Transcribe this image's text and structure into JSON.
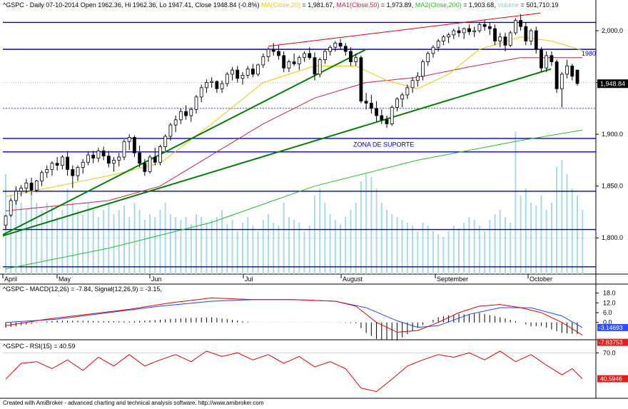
{
  "title": "^GSPC - Daily 07-10-2014 Open 1962.36, Hi 1962.36, Lo 1947.41, Close 1948.84 (-0.8%)",
  "legend": {
    "ma20": "MA(Close,20)",
    "ma20_value": "1,981.67",
    "ma50": "MA1(Close,50)",
    "ma50_value": "1,973.89",
    "ma200": "MA2(Close,200)",
    "ma200_value": "1,903.68",
    "volume": "Volume",
    "volume_value": "501,710.19"
  },
  "colors": {
    "candle": "#000000",
    "ma20": "#e8c800",
    "ma50": "#d02040",
    "ma200": "#20c020",
    "volume": "#a8d8f0",
    "hline": "#0000c8",
    "trend_support": "#008000",
    "trend_resistance": "#e00000",
    "macd": "#e00000",
    "signal": "#2040ff",
    "rsi": "#e00000",
    "last_price_bg": "#000000",
    "macd_badge": "#3050ff",
    "signal_badge": "#e02020"
  },
  "annotations": {
    "zona": "ZONA DE SUPORTE",
    "level_1980": "1980",
    "last_price": "1,948.84"
  },
  "price_axis": [
    "2,000.0",
    "1,950.0",
    "1,900.0",
    "1,850.0",
    "1,800.0"
  ],
  "months": [
    "April",
    "May",
    "Jun",
    "Jul",
    "August",
    "September",
    "October"
  ],
  "macd_panel": {
    "label": "^GSPC - MACD(12,26) = -7.84,  Signal(12,26,9) = -3.15,",
    "ticks": [
      "18.0",
      "12.0",
      "6.0",
      "0.0"
    ],
    "signal_badge": "-3.14693",
    "macd_badge": "-7.83753"
  },
  "rsi_panel": {
    "label": "^GSPC - RSI(15) = 40.59",
    "ticks": [
      "70.0"
    ],
    "badge": "40.5946"
  },
  "footer": "Created with AmiBroker - advanced charting and technical analysis software. http://www.amibroker.com",
  "chart_data": {
    "type": "candlestick",
    "title": "^GSPC - Daily 07-10-2014",
    "ylim": [
      1765,
      2020
    ],
    "hlines": [
      2008,
      1982,
      1925,
      1896,
      1883,
      1845,
      1808,
      1772
    ],
    "trendlines": [
      {
        "name": "support-steep",
        "from": [
          "2014-04-01",
          1803
        ],
        "to": [
          "2014-08-01",
          1982
        ]
      },
      {
        "name": "support",
        "from": [
          "2014-04-01",
          1802
        ],
        "to": [
          "2014-10-07",
          1963
        ]
      },
      {
        "name": "resistance",
        "from": [
          "2014-07-01",
          1985
        ],
        "to": [
          "2014-10-01",
          2017
        ]
      }
    ],
    "ohlc": [
      {
        "o": 1812,
        "h": 1822,
        "l": 1808,
        "c": 1821
      },
      {
        "o": 1822,
        "h": 1838,
        "l": 1820,
        "c": 1836
      },
      {
        "o": 1836,
        "h": 1850,
        "l": 1832,
        "c": 1845
      },
      {
        "o": 1845,
        "h": 1851,
        "l": 1840,
        "c": 1848
      },
      {
        "o": 1848,
        "h": 1857,
        "l": 1843,
        "c": 1853
      },
      {
        "o": 1853,
        "h": 1858,
        "l": 1841,
        "c": 1846
      },
      {
        "o": 1846,
        "h": 1856,
        "l": 1844,
        "c": 1855
      },
      {
        "o": 1855,
        "h": 1865,
        "l": 1850,
        "c": 1863
      },
      {
        "o": 1863,
        "h": 1870,
        "l": 1858,
        "c": 1866
      },
      {
        "o": 1866,
        "h": 1874,
        "l": 1860,
        "c": 1872
      },
      {
        "o": 1872,
        "h": 1878,
        "l": 1865,
        "c": 1870
      },
      {
        "o": 1870,
        "h": 1880,
        "l": 1866,
        "c": 1878
      },
      {
        "o": 1878,
        "h": 1884,
        "l": 1860,
        "c": 1866
      },
      {
        "o": 1866,
        "h": 1870,
        "l": 1848,
        "c": 1860
      },
      {
        "o": 1860,
        "h": 1870,
        "l": 1855,
        "c": 1868
      },
      {
        "o": 1868,
        "h": 1876,
        "l": 1862,
        "c": 1873
      },
      {
        "o": 1873,
        "h": 1883,
        "l": 1870,
        "c": 1880
      },
      {
        "o": 1880,
        "h": 1884,
        "l": 1872,
        "c": 1877
      },
      {
        "o": 1877,
        "h": 1887,
        "l": 1873,
        "c": 1884
      },
      {
        "o": 1884,
        "h": 1888,
        "l": 1875,
        "c": 1879
      },
      {
        "o": 1879,
        "h": 1884,
        "l": 1868,
        "c": 1872
      },
      {
        "o": 1872,
        "h": 1878,
        "l": 1864,
        "c": 1875
      },
      {
        "o": 1875,
        "h": 1882,
        "l": 1869,
        "c": 1878
      },
      {
        "o": 1878,
        "h": 1895,
        "l": 1875,
        "c": 1893
      },
      {
        "o": 1893,
        "h": 1900,
        "l": 1885,
        "c": 1897
      },
      {
        "o": 1897,
        "h": 1899,
        "l": 1878,
        "c": 1882
      },
      {
        "o": 1882,
        "h": 1889,
        "l": 1868,
        "c": 1872
      },
      {
        "o": 1872,
        "h": 1876,
        "l": 1860,
        "c": 1864
      },
      {
        "o": 1864,
        "h": 1880,
        "l": 1862,
        "c": 1878
      },
      {
        "o": 1878,
        "h": 1887,
        "l": 1870,
        "c": 1873
      },
      {
        "o": 1873,
        "h": 1890,
        "l": 1870,
        "c": 1888
      },
      {
        "o": 1888,
        "h": 1900,
        "l": 1884,
        "c": 1898
      },
      {
        "o": 1898,
        "h": 1911,
        "l": 1894,
        "c": 1909
      },
      {
        "o": 1909,
        "h": 1918,
        "l": 1902,
        "c": 1914
      },
      {
        "o": 1914,
        "h": 1925,
        "l": 1910,
        "c": 1922
      },
      {
        "o": 1922,
        "h": 1928,
        "l": 1914,
        "c": 1918
      },
      {
        "o": 1918,
        "h": 1926,
        "l": 1912,
        "c": 1924
      },
      {
        "o": 1924,
        "h": 1938,
        "l": 1920,
        "c": 1936
      },
      {
        "o": 1936,
        "h": 1948,
        "l": 1931,
        "c": 1945
      },
      {
        "o": 1945,
        "h": 1953,
        "l": 1940,
        "c": 1950
      },
      {
        "o": 1950,
        "h": 1955,
        "l": 1945,
        "c": 1951
      },
      {
        "o": 1951,
        "h": 1952,
        "l": 1940,
        "c": 1944
      },
      {
        "o": 1944,
        "h": 1952,
        "l": 1940,
        "c": 1949
      },
      {
        "o": 1949,
        "h": 1960,
        "l": 1946,
        "c": 1958
      },
      {
        "o": 1958,
        "h": 1965,
        "l": 1952,
        "c": 1962
      },
      {
        "o": 1962,
        "h": 1966,
        "l": 1950,
        "c": 1954
      },
      {
        "o": 1954,
        "h": 1960,
        "l": 1948,
        "c": 1957
      },
      {
        "o": 1957,
        "h": 1966,
        "l": 1954,
        "c": 1963
      },
      {
        "o": 1963,
        "h": 1968,
        "l": 1955,
        "c": 1958
      },
      {
        "o": 1958,
        "h": 1968,
        "l": 1956,
        "c": 1967
      },
      {
        "o": 1967,
        "h": 1978,
        "l": 1964,
        "c": 1975
      },
      {
        "o": 1975,
        "h": 1984,
        "l": 1970,
        "c": 1982
      },
      {
        "o": 1982,
        "h": 1988,
        "l": 1976,
        "c": 1980
      },
      {
        "o": 1980,
        "h": 1986,
        "l": 1972,
        "c": 1976
      },
      {
        "o": 1976,
        "h": 1980,
        "l": 1960,
        "c": 1964
      },
      {
        "o": 1964,
        "h": 1972,
        "l": 1960,
        "c": 1970
      },
      {
        "o": 1970,
        "h": 1978,
        "l": 1966,
        "c": 1968
      },
      {
        "o": 1968,
        "h": 1976,
        "l": 1962,
        "c": 1974
      },
      {
        "o": 1974,
        "h": 1980,
        "l": 1970,
        "c": 1978
      },
      {
        "o": 1978,
        "h": 1984,
        "l": 1972,
        "c": 1974
      },
      {
        "o": 1974,
        "h": 1979,
        "l": 1952,
        "c": 1958
      },
      {
        "o": 1958,
        "h": 1974,
        "l": 1955,
        "c": 1972
      },
      {
        "o": 1972,
        "h": 1982,
        "l": 1968,
        "c": 1980
      },
      {
        "o": 1980,
        "h": 1986,
        "l": 1976,
        "c": 1984
      },
      {
        "o": 1984,
        "h": 1990,
        "l": 1980,
        "c": 1988
      },
      {
        "o": 1988,
        "h": 1992,
        "l": 1982,
        "c": 1985
      },
      {
        "o": 1985,
        "h": 1988,
        "l": 1976,
        "c": 1980
      },
      {
        "o": 1980,
        "h": 1984,
        "l": 1966,
        "c": 1970
      },
      {
        "o": 1970,
        "h": 1978,
        "l": 1966,
        "c": 1974
      },
      {
        "o": 1974,
        "h": 1976,
        "l": 1930,
        "c": 1932
      },
      {
        "o": 1932,
        "h": 1940,
        "l": 1924,
        "c": 1930
      },
      {
        "o": 1930,
        "h": 1938,
        "l": 1920,
        "c": 1925
      },
      {
        "o": 1925,
        "h": 1932,
        "l": 1912,
        "c": 1918
      },
      {
        "o": 1918,
        "h": 1924,
        "l": 1910,
        "c": 1914
      },
      {
        "o": 1914,
        "h": 1918,
        "l": 1906,
        "c": 1910
      },
      {
        "o": 1910,
        "h": 1928,
        "l": 1908,
        "c": 1926
      },
      {
        "o": 1926,
        "h": 1936,
        "l": 1922,
        "c": 1934
      },
      {
        "o": 1934,
        "h": 1940,
        "l": 1926,
        "c": 1938
      },
      {
        "o": 1938,
        "h": 1948,
        "l": 1934,
        "c": 1945
      },
      {
        "o": 1945,
        "h": 1955,
        "l": 1940,
        "c": 1952
      },
      {
        "o": 1952,
        "h": 1960,
        "l": 1946,
        "c": 1956
      },
      {
        "o": 1956,
        "h": 1972,
        "l": 1952,
        "c": 1970
      },
      {
        "o": 1970,
        "h": 1980,
        "l": 1966,
        "c": 1978
      },
      {
        "o": 1978,
        "h": 1986,
        "l": 1974,
        "c": 1984
      },
      {
        "o": 1984,
        "h": 1992,
        "l": 1980,
        "c": 1990
      },
      {
        "o": 1990,
        "h": 1996,
        "l": 1986,
        "c": 1994
      },
      {
        "o": 1994,
        "h": 1998,
        "l": 1988,
        "c": 1996
      },
      {
        "o": 1996,
        "h": 2002,
        "l": 1992,
        "c": 2000
      },
      {
        "o": 2000,
        "h": 2004,
        "l": 1994,
        "c": 1998
      },
      {
        "o": 1998,
        "h": 2003,
        "l": 1992,
        "c": 2002
      },
      {
        "o": 2002,
        "h": 2006,
        "l": 1996,
        "c": 1999
      },
      {
        "o": 1999,
        "h": 2004,
        "l": 1994,
        "c": 2000
      },
      {
        "o": 2000,
        "h": 2008,
        "l": 1998,
        "c": 2006
      },
      {
        "o": 2006,
        "h": 2010,
        "l": 2000,
        "c": 2004
      },
      {
        "o": 2004,
        "h": 2008,
        "l": 1996,
        "c": 2002
      },
      {
        "o": 2002,
        "h": 2006,
        "l": 1986,
        "c": 1990
      },
      {
        "o": 1990,
        "h": 1998,
        "l": 1984,
        "c": 1994
      },
      {
        "o": 1994,
        "h": 1998,
        "l": 1980,
        "c": 1986
      },
      {
        "o": 1986,
        "h": 2000,
        "l": 1984,
        "c": 1998
      },
      {
        "o": 1998,
        "h": 2012,
        "l": 1996,
        "c": 2010
      },
      {
        "o": 2010,
        "h": 2016,
        "l": 2000,
        "c": 2004
      },
      {
        "o": 2004,
        "h": 2008,
        "l": 1986,
        "c": 1990
      },
      {
        "o": 1990,
        "h": 2002,
        "l": 1986,
        "c": 2000
      },
      {
        "o": 2000,
        "h": 2004,
        "l": 1978,
        "c": 1982
      },
      {
        "o": 1982,
        "h": 1984,
        "l": 1960,
        "c": 1964
      },
      {
        "o": 1964,
        "h": 1980,
        "l": 1960,
        "c": 1976
      },
      {
        "o": 1976,
        "h": 1980,
        "l": 1966,
        "c": 1970
      },
      {
        "o": 1970,
        "h": 1972,
        "l": 1940,
        "c": 1944
      },
      {
        "o": 1944,
        "h": 1960,
        "l": 1926,
        "c": 1958
      },
      {
        "o": 1958,
        "h": 1972,
        "l": 1954,
        "c": 1966
      },
      {
        "o": 1966,
        "h": 1968,
        "l": 1952,
        "c": 1956
      },
      {
        "o": 1962,
        "h": 1962,
        "l": 1947,
        "c": 1949
      }
    ],
    "ma20": [
      [
        0,
        1840
      ],
      [
        10,
        1850
      ],
      [
        20,
        1860
      ],
      [
        30,
        1872
      ],
      [
        40,
        1910
      ],
      [
        50,
        1950
      ],
      [
        60,
        1966
      ],
      [
        68,
        1966
      ],
      [
        74,
        1952
      ],
      [
        80,
        1944
      ],
      [
        86,
        1958
      ],
      [
        92,
        1982
      ],
      [
        100,
        1994
      ],
      [
        106,
        1990
      ],
      [
        112,
        1981
      ]
    ],
    "ma50": [
      [
        0,
        1826
      ],
      [
        20,
        1836
      ],
      [
        30,
        1850
      ],
      [
        40,
        1880
      ],
      [
        50,
        1910
      ],
      [
        60,
        1935
      ],
      [
        70,
        1950
      ],
      [
        80,
        1955
      ],
      [
        90,
        1965
      ],
      [
        100,
        1974
      ],
      [
        112,
        1974
      ]
    ],
    "ma200": [
      [
        0,
        1770
      ],
      [
        20,
        1790
      ],
      [
        40,
        1815
      ],
      [
        60,
        1850
      ],
      [
        80,
        1875
      ],
      [
        100,
        1894
      ],
      [
        112,
        1904
      ]
    ],
    "volume": [
      0.7,
      0.55,
      0.6,
      0.5,
      0.45,
      0.55,
      0.5,
      0.45,
      0.5,
      0.48,
      0.4,
      0.45,
      0.6,
      0.5,
      0.45,
      0.42,
      0.5,
      0.45,
      0.4,
      0.45,
      0.5,
      0.42,
      0.45,
      0.48,
      0.4,
      0.5,
      0.45,
      0.38,
      0.42,
      0.4,
      0.45,
      0.5,
      0.42,
      0.4,
      0.38,
      0.4,
      0.35,
      0.42,
      0.4,
      0.36,
      0.38,
      0.4,
      0.45,
      0.35,
      0.38,
      0.3,
      0.36,
      0.4,
      0.34,
      0.3,
      0.38,
      0.42,
      0.36,
      0.34,
      0.5,
      0.4,
      0.38,
      0.36,
      0.3,
      0.34,
      0.55,
      0.6,
      0.5,
      0.42,
      0.38,
      0.35,
      0.4,
      0.45,
      0.5,
      0.65,
      0.7,
      0.68,
      0.6,
      0.5,
      0.45,
      0.42,
      0.4,
      0.38,
      0.36,
      0.34,
      0.3,
      0.36,
      0.34,
      0.3,
      0.28,
      0.26,
      0.3,
      0.34,
      0.32,
      0.36,
      0.4,
      0.38,
      0.34,
      0.3,
      0.38,
      0.42,
      0.45,
      0.4,
      0.36,
      1.0,
      0.55,
      0.6,
      0.5,
      0.48,
      0.55,
      0.45,
      0.5,
      0.75,
      0.8,
      0.7,
      0.6,
      0.55,
      0.45
    ],
    "macd": [
      [
        0,
        -2
      ],
      [
        8,
        2
      ],
      [
        16,
        5
      ],
      [
        24,
        8
      ],
      [
        32,
        12
      ],
      [
        40,
        15
      ],
      [
        48,
        14
      ],
      [
        56,
        14
      ],
      [
        64,
        13
      ],
      [
        68,
        10
      ],
      [
        72,
        0
      ],
      [
        76,
        -6
      ],
      [
        80,
        -5
      ],
      [
        84,
        0
      ],
      [
        88,
        6
      ],
      [
        92,
        10
      ],
      [
        96,
        11
      ],
      [
        100,
        9
      ],
      [
        104,
        6
      ],
      [
        108,
        0
      ],
      [
        112,
        -7.84
      ]
    ],
    "signal": [
      [
        0,
        0
      ],
      [
        10,
        2
      ],
      [
        20,
        6
      ],
      [
        30,
        10
      ],
      [
        40,
        13
      ],
      [
        48,
        14
      ],
      [
        56,
        14
      ],
      [
        64,
        13
      ],
      [
        70,
        9
      ],
      [
        76,
        1
      ],
      [
        80,
        -3
      ],
      [
        84,
        -2
      ],
      [
        90,
        5
      ],
      [
        96,
        9
      ],
      [
        102,
        9
      ],
      [
        108,
        4
      ],
      [
        112,
        -3.15
      ]
    ],
    "macd_range": [
      -8,
      20
    ],
    "rsi": [
      [
        0,
        40
      ],
      [
        3,
        58
      ],
      [
        6,
        60
      ],
      [
        9,
        52
      ],
      [
        12,
        62
      ],
      [
        15,
        50
      ],
      [
        18,
        65
      ],
      [
        21,
        55
      ],
      [
        24,
        68
      ],
      [
        27,
        55
      ],
      [
        30,
        62
      ],
      [
        33,
        68
      ],
      [
        36,
        60
      ],
      [
        39,
        72
      ],
      [
        42,
        66
      ],
      [
        45,
        70
      ],
      [
        48,
        62
      ],
      [
        51,
        68
      ],
      [
        54,
        58
      ],
      [
        57,
        66
      ],
      [
        60,
        54
      ],
      [
        63,
        60
      ],
      [
        66,
        52
      ],
      [
        69,
        30
      ],
      [
        72,
        26
      ],
      [
        75,
        40
      ],
      [
        78,
        55
      ],
      [
        81,
        62
      ],
      [
        84,
        68
      ],
      [
        87,
        65
      ],
      [
        90,
        70
      ],
      [
        93,
        62
      ],
      [
        96,
        72
      ],
      [
        99,
        60
      ],
      [
        102,
        68
      ],
      [
        105,
        56
      ],
      [
        108,
        45
      ],
      [
        110,
        52
      ],
      [
        112,
        40.59
      ]
    ],
    "rsi_range": [
      20,
      80
    ]
  }
}
